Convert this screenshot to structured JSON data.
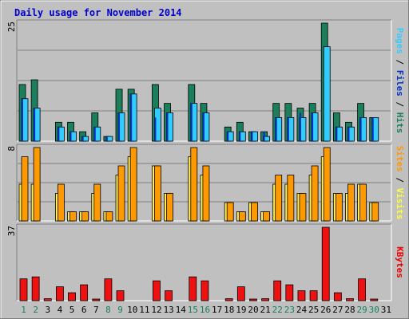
{
  "chart_data": [
    {
      "type": "bar",
      "title": "Daily usage for November 2014",
      "ylabel_parts": [
        {
          "text": "Pages",
          "color": "#33ccff"
        },
        {
          "text": " / ",
          "color": "#000000"
        },
        {
          "text": "Files",
          "color": "#0033cc"
        },
        {
          "text": " / ",
          "color": "#000000"
        },
        {
          "text": "Hits",
          "color": "#1a7f5a"
        }
      ],
      "ymax_label": "25",
      "categories": [
        "1",
        "2",
        "3",
        "4",
        "5",
        "6",
        "7",
        "8",
        "9",
        "10",
        "11",
        "12",
        "13",
        "14",
        "15",
        "16",
        "17",
        "18",
        "19",
        "20",
        "21",
        "22",
        "23",
        "24",
        "25",
        "26",
        "27",
        "28",
        "29",
        "30",
        "31"
      ],
      "weekend_days": [
        "1",
        "2",
        "8",
        "9",
        "15",
        "16",
        "22",
        "23",
        "29",
        "30"
      ],
      "ylim": [
        0,
        25
      ],
      "series": [
        {
          "name": "Hits",
          "color": "#1a7f5a",
          "values": [
            12,
            13,
            0,
            4,
            4,
            2,
            6,
            1,
            11,
            11,
            0,
            12,
            8,
            0,
            12,
            8,
            0,
            3,
            4,
            2,
            2,
            8,
            8,
            7,
            8,
            25,
            6,
            4,
            8,
            5,
            0
          ]
        },
        {
          "name": "Files",
          "color": "#0033cc",
          "values": [
            9,
            7,
            0,
            3,
            2,
            1,
            3,
            1,
            6,
            10,
            0,
            5,
            6,
            0,
            8,
            6,
            0,
            2,
            2,
            2,
            2,
            5,
            5,
            6,
            6,
            0,
            3,
            3,
            5,
            5,
            0
          ]
        },
        {
          "name": "Pages",
          "color": "#33ccff",
          "values": [
            9,
            7,
            0,
            3,
            2,
            1,
            3,
            1,
            6,
            10,
            0,
            7,
            6,
            0,
            8,
            6,
            0,
            2,
            2,
            2,
            1,
            5,
            5,
            5,
            6,
            20,
            3,
            3,
            5,
            5,
            0
          ]
        }
      ]
    },
    {
      "type": "bar",
      "ylabel_parts": [
        {
          "text": "Sites",
          "color": "#ff9900"
        },
        {
          "text": " / ",
          "color": "#000000"
        },
        {
          "text": "Visits",
          "color": "#ffff33"
        }
      ],
      "ymax_label": "8",
      "ylim": [
        0,
        8
      ],
      "series": [
        {
          "name": "Visits",
          "color": "#ffee55",
          "values": [
            4,
            4,
            0,
            3,
            1,
            1,
            3,
            1,
            5,
            7,
            0,
            6,
            3,
            0,
            7,
            5,
            0,
            2,
            1,
            2,
            1,
            4,
            4,
            3,
            5,
            7,
            3,
            3,
            4,
            2,
            0
          ]
        },
        {
          "name": "Sites",
          "color": "#ff9900",
          "values": [
            7,
            8,
            0,
            4,
            1,
            1,
            4,
            1,
            6,
            8,
            0,
            6,
            3,
            0,
            8,
            6,
            0,
            2,
            1,
            2,
            1,
            5,
            5,
            3,
            6,
            8,
            3,
            4,
            4,
            2,
            0
          ]
        }
      ]
    },
    {
      "type": "bar",
      "ylabel_parts": [
        {
          "text": "KBytes",
          "color": "#ee0000"
        }
      ],
      "ymax_label": "37",
      "ylim": [
        0,
        37
      ],
      "series": [
        {
          "name": "KBytes",
          "color": "#ee1111",
          "values": [
            11,
            12,
            1,
            7,
            4,
            8,
            0.5,
            11,
            5,
            0,
            0,
            10,
            5,
            0,
            12,
            10,
            0,
            1,
            7,
            0.5,
            1,
            10,
            8,
            5,
            5,
            37,
            4,
            1,
            11,
            0.5,
            0
          ]
        }
      ]
    }
  ]
}
